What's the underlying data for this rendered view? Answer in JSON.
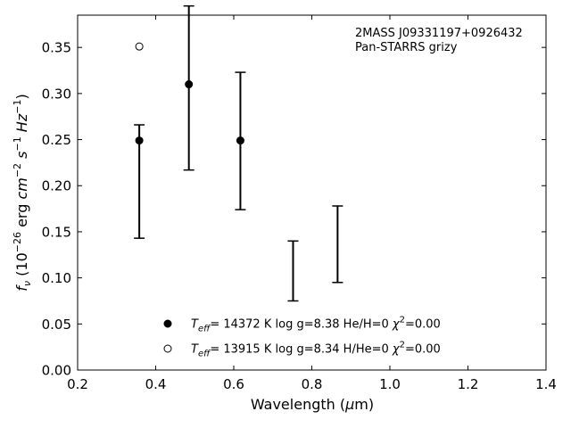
{
  "chart_data": {
    "type": "scatter",
    "xlabel": "Wavelength (μm)",
    "ylabel": "fν (10⁻²⁶ erg cm⁻² s⁻¹ Hz⁻¹)",
    "xlim": [
      0.2,
      1.4
    ],
    "ylim": [
      0.0,
      0.385
    ],
    "xticks": [
      0.2,
      0.4,
      0.6,
      0.8,
      1.0,
      1.2,
      1.4
    ],
    "xtick_labels": [
      "0.2",
      "0.4",
      "0.6",
      "0.8",
      "1.0",
      "1.2",
      "1.4"
    ],
    "yticks": [
      0.0,
      0.05,
      0.1,
      0.15,
      0.2,
      0.25,
      0.3,
      0.35
    ],
    "ytick_labels": [
      "0.00",
      "0.05",
      "0.10",
      "0.15",
      "0.20",
      "0.25",
      "0.30",
      "0.35"
    ],
    "grid": false,
    "annotation": {
      "lines": [
        "2MASS J09331197+0926432",
        "Pan-STARRS grizy"
      ],
      "placement": "top-right"
    },
    "observed": {
      "x": [
        0.358,
        0.485,
        0.617,
        0.752,
        0.866
      ],
      "err_low": [
        0.143,
        0.217,
        0.174,
        0.075,
        0.095
      ],
      "err_high": [
        0.266,
        0.395,
        0.323,
        0.14,
        0.178
      ]
    },
    "series": [
      {
        "name": "T_eff= 14372 K  log g=8.38  He/H=0  χ²=0.00",
        "marker": "filled-circle",
        "x": [
          0.358,
          0.485,
          0.617
        ],
        "y": [
          0.249,
          0.31,
          0.249
        ]
      },
      {
        "name": "T_eff= 13915 K  log g=8.34  H/He=0  χ²=0.00",
        "marker": "open-circle",
        "x": [
          0.358
        ],
        "y": [
          0.351
        ]
      }
    ],
    "legend": {
      "placement": "bottom-center",
      "entries": [
        {
          "marker": "filled-circle",
          "teff": "14372",
          "logg": "8.38",
          "comp": "He/H=0",
          "chi2": "0.00"
        },
        {
          "marker": "open-circle",
          "teff": "13915",
          "logg": "8.34",
          "comp": "H/He=0",
          "chi2": "0.00"
        }
      ]
    }
  }
}
